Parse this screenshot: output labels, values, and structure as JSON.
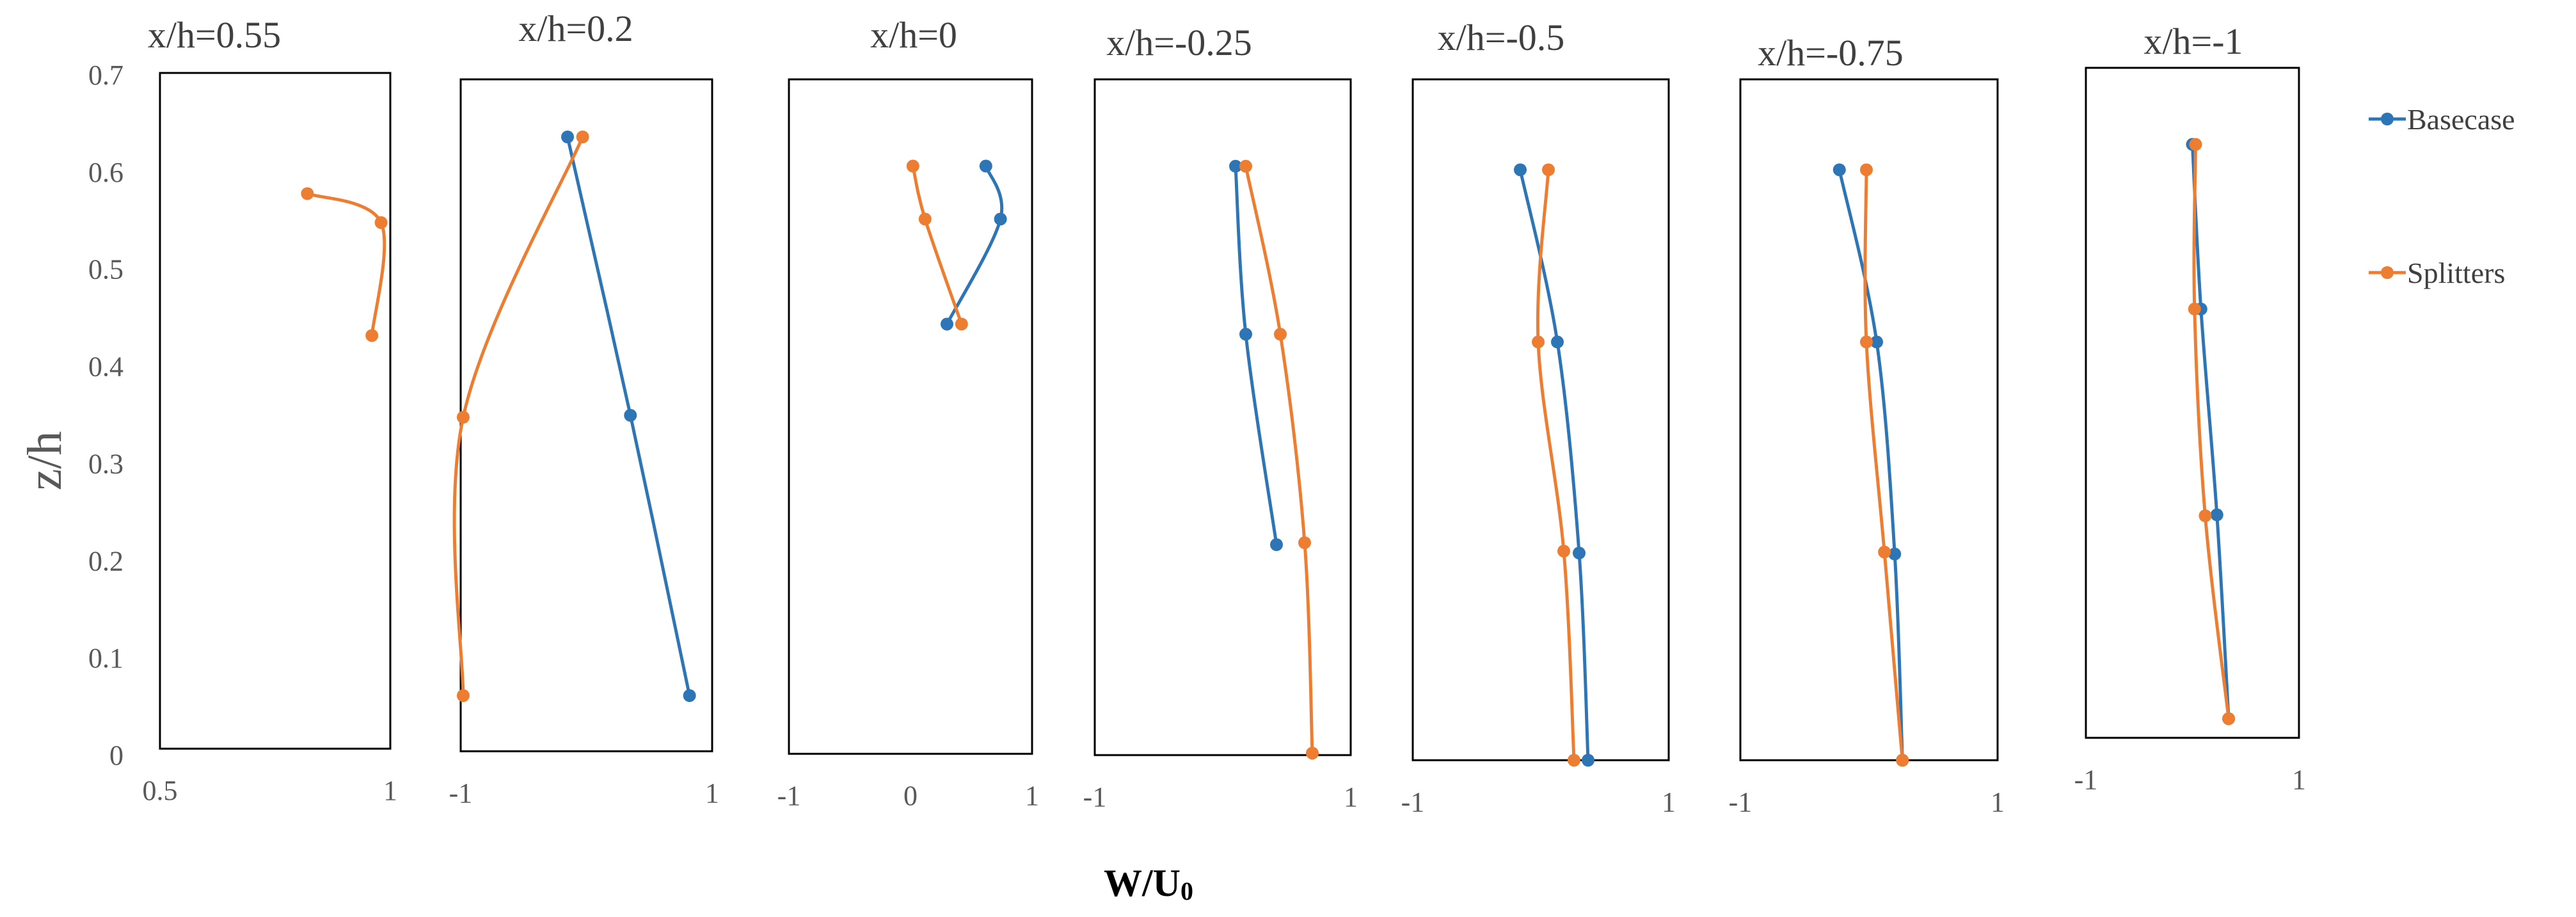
{
  "chart_data": {
    "type": "line",
    "ylabel": "z/h",
    "xlabel": "W/U₀",
    "ylim": [
      0,
      0.7
    ],
    "yticks": [
      "0",
      "0.1",
      "0.2",
      "0.3",
      "0.4",
      "0.5",
      "0.6",
      "0.7"
    ],
    "legend": [
      {
        "name": "Basecase",
        "color": "#2E75B6"
      },
      {
        "name": "Splitters",
        "color": "#ED7D31"
      }
    ],
    "panels": [
      {
        "title": "x/h=0.55",
        "xlim": [
          0.5,
          1
        ],
        "xticks": [
          "0.5",
          "1"
        ],
        "series": [
          {
            "name": "Basecase",
            "points": []
          },
          {
            "name": "Splitters",
            "points": [
              [
                0.82,
                0.575
              ],
              [
                0.98,
                0.545
              ],
              [
                0.96,
                0.428
              ]
            ]
          }
        ]
      },
      {
        "title": "x/h=0.2",
        "xlim": [
          -1,
          1
        ],
        "xticks": [
          "-1",
          "1"
        ],
        "series": [
          {
            "name": "Basecase",
            "points": [
              [
                -0.15,
                0.64
              ],
              [
                0.35,
                0.35
              ],
              [
                0.82,
                0.058
              ]
            ]
          },
          {
            "name": "Splitters",
            "points": [
              [
                -0.03,
                0.64
              ],
              [
                -0.98,
                0.348
              ],
              [
                -0.98,
                0.058
              ]
            ]
          }
        ]
      },
      {
        "title": "x/h=0",
        "xlim": [
          -1,
          1
        ],
        "xticks": [
          "-1",
          "0",
          "1"
        ],
        "series": [
          {
            "name": "Basecase",
            "points": [
              [
                0.62,
                0.61
              ],
              [
                0.74,
                0.555
              ],
              [
                0.3,
                0.446
              ]
            ]
          },
          {
            "name": "Splitters",
            "points": [
              [
                0.02,
                0.61
              ],
              [
                0.12,
                0.555
              ],
              [
                0.42,
                0.446
              ]
            ]
          }
        ]
      },
      {
        "title": "x/h=-0.25",
        "xlim": [
          -1,
          1
        ],
        "xticks": [
          "-1",
          "1"
        ],
        "series": [
          {
            "name": "Basecase",
            "points": [
              [
                0.1,
                0.61
              ],
              [
                0.18,
                0.436
              ],
              [
                0.42,
                0.218
              ]
            ]
          },
          {
            "name": "Splitters",
            "points": [
              [
                0.18,
                0.61
              ],
              [
                0.45,
                0.436
              ],
              [
                0.64,
                0.22
              ],
              [
                0.7,
                0.002
              ]
            ]
          }
        ]
      },
      {
        "title": "x/h=-0.5",
        "xlim": [
          -1,
          1
        ],
        "xticks": [
          "-1",
          "1"
        ],
        "series": [
          {
            "name": "Basecase",
            "points": [
              [
                -0.16,
                0.607
              ],
              [
                0.13,
                0.43
              ],
              [
                0.3,
                0.213
              ],
              [
                0.37,
                0.0
              ]
            ]
          },
          {
            "name": "Splitters",
            "points": [
              [
                0.06,
                0.607
              ],
              [
                -0.02,
                0.43
              ],
              [
                0.18,
                0.215
              ],
              [
                0.26,
                0.0
              ]
            ]
          }
        ]
      },
      {
        "title": "x/h=-0.75",
        "xlim": [
          -1,
          1
        ],
        "xticks": [
          "-1",
          "1"
        ],
        "series": [
          {
            "name": "Basecase",
            "points": [
              [
                -0.23,
                0.607
              ],
              [
                0.06,
                0.43
              ],
              [
                0.2,
                0.212
              ],
              [
                0.26,
                0.0
              ]
            ]
          },
          {
            "name": "Splitters",
            "points": [
              [
                -0.02,
                0.607
              ],
              [
                -0.02,
                0.43
              ],
              [
                0.12,
                0.214
              ],
              [
                0.26,
                0.0
              ]
            ]
          }
        ]
      },
      {
        "title": "x/h=-1",
        "xlim": [
          -1,
          1
        ],
        "xticks": [
          "-1",
          "1"
        ],
        "series": [
          {
            "name": "Basecase",
            "points": [
              [
                0.0,
                0.62
              ],
              [
                0.08,
                0.448
              ],
              [
                0.23,
                0.233
              ],
              [
                0.34,
                0.02
              ]
            ]
          },
          {
            "name": "Splitters",
            "points": [
              [
                0.03,
                0.62
              ],
              [
                0.02,
                0.448
              ],
              [
                0.12,
                0.232
              ],
              [
                0.34,
                0.02
              ]
            ]
          }
        ]
      }
    ]
  }
}
